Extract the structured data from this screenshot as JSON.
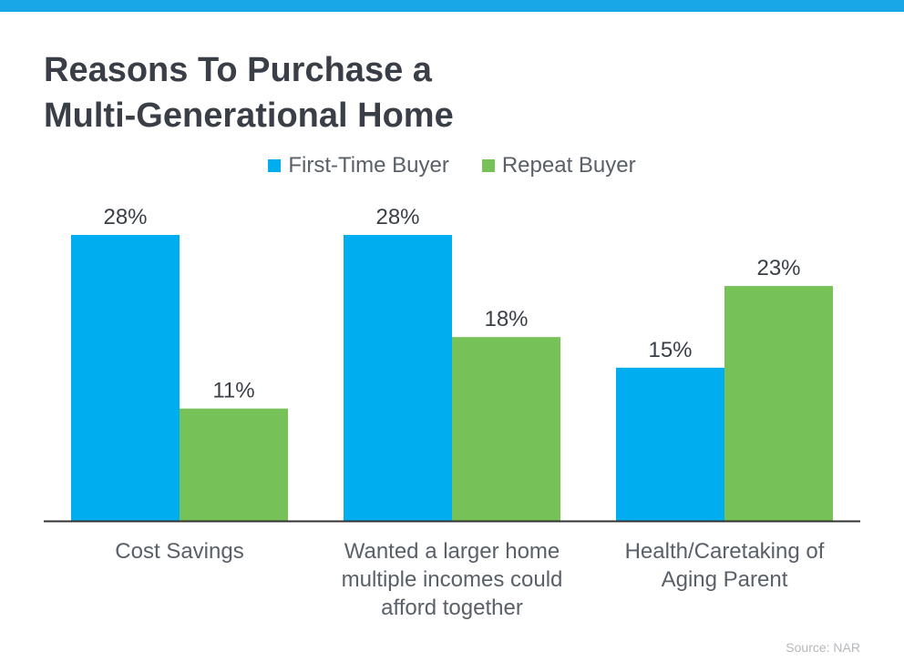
{
  "title_line1": "Reasons To Purchase a",
  "title_line2": "Multi-Generational Home",
  "source": "Source: NAR",
  "colors": {
    "accent_bar": "#1aa7e8",
    "first_time": "#00aeef",
    "repeat": "#77c258",
    "axis": "#333333",
    "text": "#5a6068"
  },
  "chart_data": {
    "type": "bar",
    "title": "Reasons To Purchase a Multi-Generational Home",
    "categories": [
      [
        "Cost Savings"
      ],
      [
        "Wanted a larger home",
        "multiple incomes could",
        "afford together"
      ],
      [
        "Health/Caretaking of",
        "Aging Parent"
      ]
    ],
    "series": [
      {
        "name": "First-Time Buyer",
        "values": [
          28,
          28,
          15
        ],
        "labels": [
          "28%",
          "28%",
          "15%"
        ],
        "color": "#00aeef"
      },
      {
        "name": "Repeat Buyer",
        "values": [
          11,
          18,
          23
        ],
        "labels": [
          "11%",
          "18%",
          "23%"
        ],
        "color": "#77c258"
      }
    ],
    "ylim": [
      0,
      28
    ],
    "grid": false,
    "legend": "top-center"
  }
}
